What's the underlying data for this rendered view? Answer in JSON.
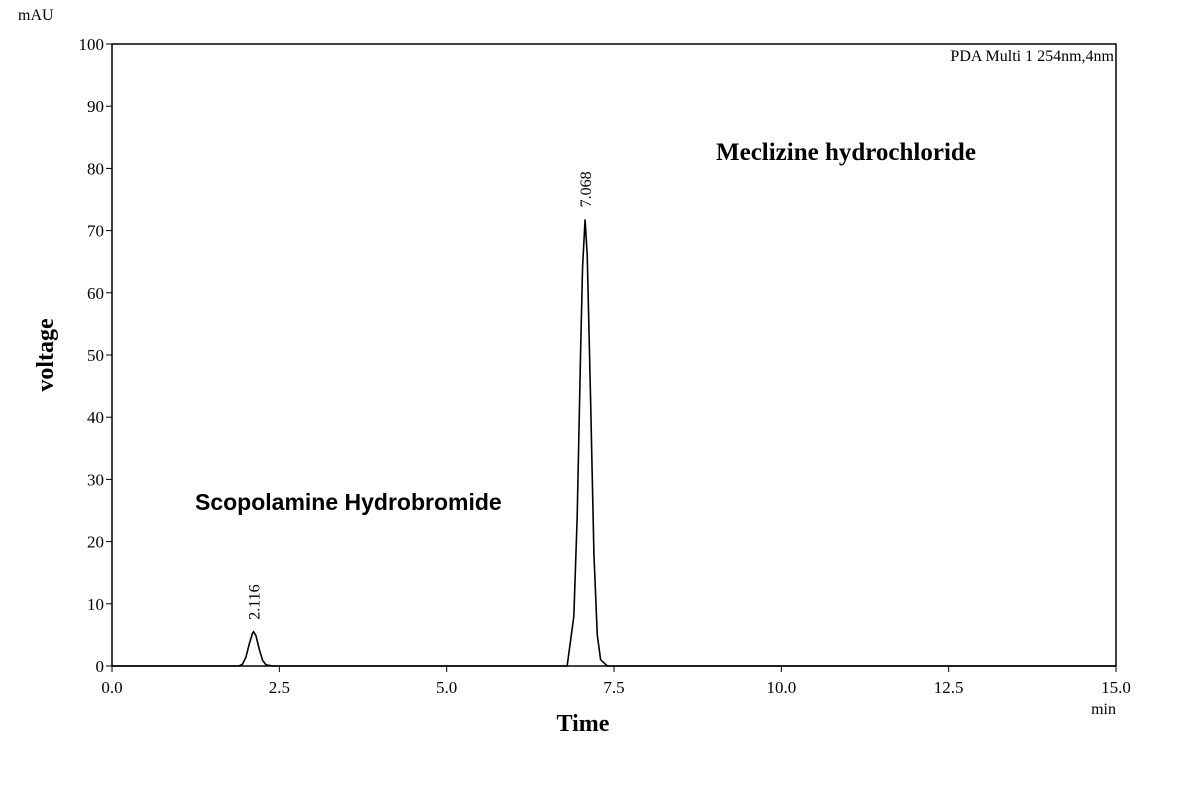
{
  "chart_data": {
    "type": "line",
    "y_unit": "mAU",
    "x_unit": "min",
    "xlabel": "Time",
    "ylabel": "voltage",
    "x": [
      0,
      1.9,
      1.95,
      2.0,
      2.05,
      2.1,
      2.116,
      2.15,
      2.2,
      2.25,
      2.3,
      2.4,
      6.8,
      6.9,
      6.95,
      7.0,
      7.03,
      7.068,
      7.1,
      7.15,
      7.2,
      7.25,
      7.3,
      7.4,
      15
    ],
    "series": [
      {
        "name": "PDA Multi 1 254nm,4nm",
        "color": "#000000",
        "values": [
          0,
          0,
          0.3,
          1.4,
          3.5,
          5.3,
          5.5,
          4.9,
          2.7,
          0.9,
          0.2,
          0,
          0,
          8,
          24,
          50,
          64,
          71.8,
          66,
          43,
          18,
          5,
          1,
          0,
          0
        ]
      }
    ],
    "peaks": [
      2.116,
      7.068
    ],
    "annotations": [
      "Scopolamine Hydrobromide",
      "Meclizine hydrochloride"
    ],
    "xlim": [
      0,
      15
    ],
    "xticks": [
      {
        "value": 0,
        "label": "0.0"
      },
      2.5,
      {
        "value": 5,
        "label": "5.0"
      },
      7.5,
      {
        "value": 10,
        "label": "10.0"
      },
      12.5,
      {
        "value": 15,
        "label": "15.0"
      }
    ],
    "ylim": [
      0,
      100
    ],
    "yticks": [
      0,
      10,
      20,
      30,
      40,
      50,
      60,
      70,
      80,
      90,
      100
    ],
    "grid": false
  }
}
